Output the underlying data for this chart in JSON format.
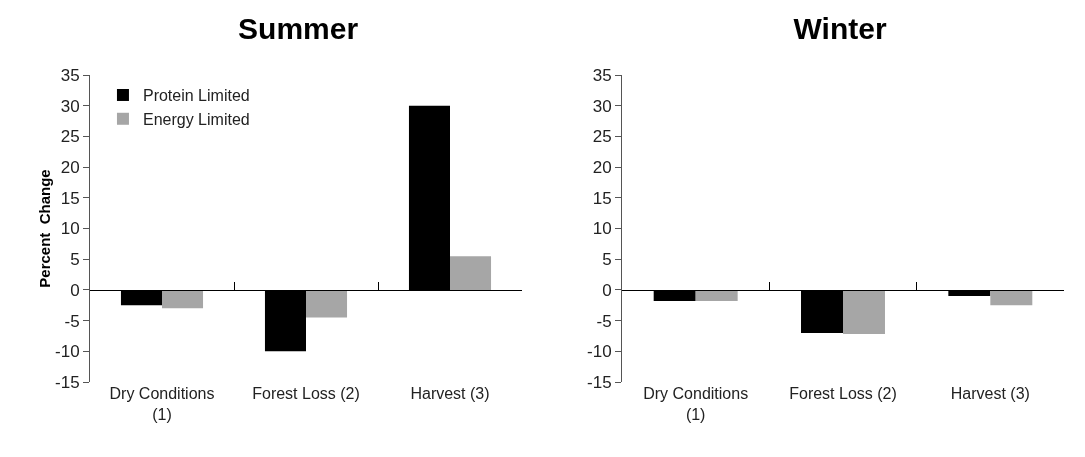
{
  "chart_data": [
    {
      "type": "bar",
      "title": "Summer",
      "ylabel": "Percent  Change",
      "categories": [
        "Dry Conditions (1)",
        "Forest Loss (2)",
        "Harvest (3)"
      ],
      "series": [
        {
          "name": "Protein Limited",
          "color": "#000000",
          "values": [
            -2.5,
            -10,
            30
          ]
        },
        {
          "name": "Energy Limited",
          "color": "#a6a6a6",
          "values": [
            -3,
            -4.5,
            5.5
          ]
        }
      ],
      "ylim": [
        -15,
        35
      ],
      "yticks": [
        -15,
        -10,
        -5,
        0,
        5,
        10,
        15,
        20,
        25,
        30,
        35
      ],
      "legend": "top left"
    },
    {
      "type": "bar",
      "title": "Winter",
      "categories": [
        "Dry Conditions (1)",
        "Forest Loss (2)",
        "Harvest (3)"
      ],
      "series": [
        {
          "color": "#000000",
          "values": [
            -1.8,
            -7,
            -1
          ]
        },
        {
          "color": "#a6a6a6",
          "values": [
            -1.8,
            -7.2,
            -2.5
          ]
        }
      ],
      "ylim": [
        -15,
        35
      ],
      "yticks": [
        -15,
        -10,
        -5,
        0,
        5,
        10,
        15,
        20,
        25,
        30,
        35
      ],
      "legend": false
    }
  ]
}
